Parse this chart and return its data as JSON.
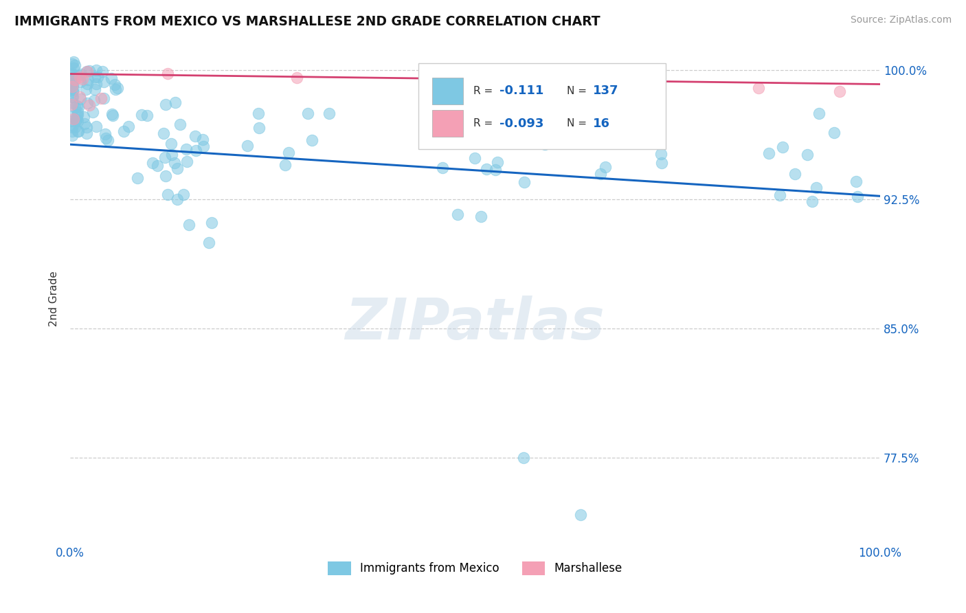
{
  "title": "IMMIGRANTS FROM MEXICO VS MARSHALLESE 2ND GRADE CORRELATION CHART",
  "source": "Source: ZipAtlas.com",
  "ylabel": "2nd Grade",
  "xlim": [
    0.0,
    1.0
  ],
  "ylim": [
    0.725,
    1.01
  ],
  "yticks": [
    0.775,
    0.85,
    0.925,
    1.0
  ],
  "ytick_labels": [
    "77.5%",
    "85.0%",
    "92.5%",
    "100.0%"
  ],
  "legend_labels": [
    "Immigrants from Mexico",
    "Marshallese"
  ],
  "R1": -0.111,
  "N1": 137,
  "R2": -0.093,
  "N2": 16,
  "color_blue": "#7ec8e3",
  "color_pink": "#f4a0b5",
  "trendline_blue": "#1565c0",
  "trendline_pink": "#d44070",
  "tick_color": "#1565c0",
  "title_color": "#111111",
  "source_color": "#999999",
  "watermark": "ZIPatlas",
  "grid_color": "#cccccc",
  "background_color": "#ffffff",
  "blue_trend_y0": 0.957,
  "blue_trend_y1": 0.927,
  "pink_trend_y0": 0.998,
  "pink_trend_y1": 0.992
}
